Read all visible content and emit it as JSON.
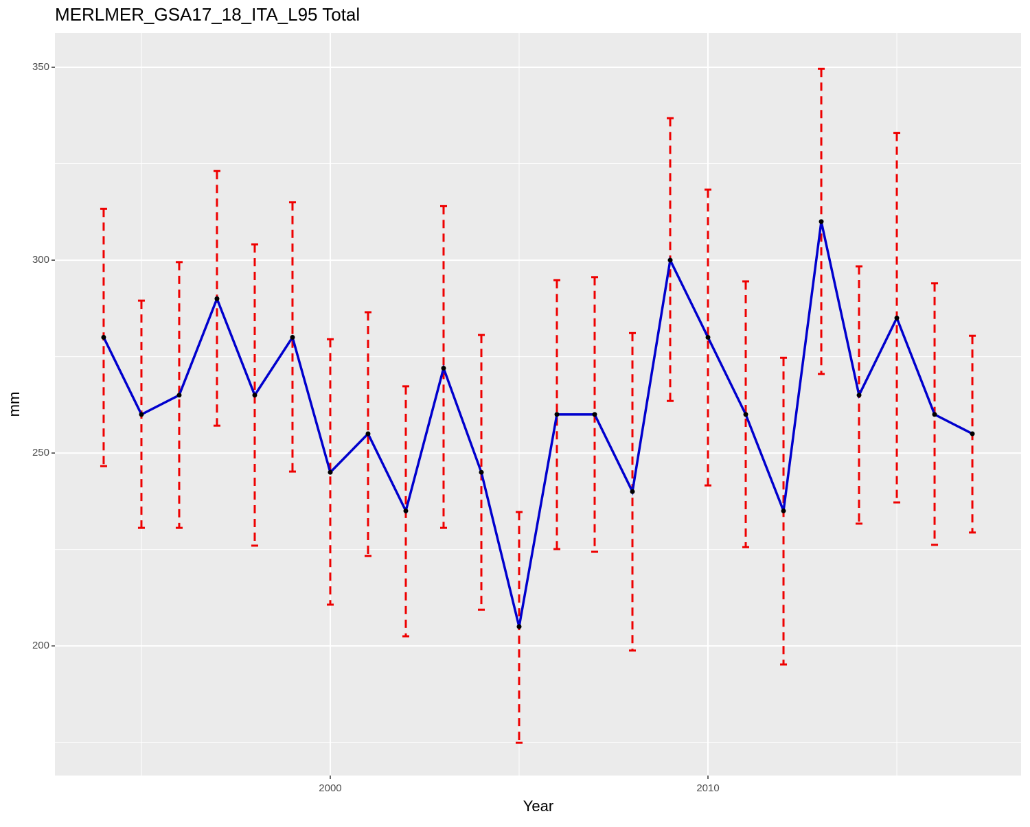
{
  "chart_data": {
    "type": "line",
    "title": "MERLMER_GSA17_18_ITA_L95 Total",
    "x_label": "Year",
    "y_label": "mm",
    "x": [
      1994,
      1995,
      1996,
      1997,
      1998,
      1999,
      2000,
      2001,
      2002,
      2003,
      2004,
      2005,
      2006,
      2007,
      2008,
      2009,
      2010,
      2011,
      2012,
      2013,
      2014,
      2015,
      2016,
      2017
    ],
    "series": [
      {
        "color": "#0000cd",
        "values": [
          280,
          260,
          265,
          290,
          265,
          280,
          245,
          255,
          235,
          272,
          245,
          205,
          260,
          260,
          240,
          300,
          280,
          260,
          235,
          310,
          265,
          285,
          260,
          255
        ],
        "lower": [
          246.6,
          230.6,
          230.6,
          257.1,
          226,
          245.2,
          210.7,
          223.3,
          202.5,
          230.6,
          209.4,
          174.9,
          225.1,
          224.4,
          198.8,
          263.5,
          241.6,
          225.6,
          195.2,
          270.5,
          231.7,
          237.2,
          226.2,
          229.4
        ],
        "upper": [
          313.3,
          289.5,
          299.5,
          323.1,
          304.1,
          315,
          279.5,
          286.5,
          267.3,
          314,
          280.6,
          234.7,
          294.8,
          295.6,
          281.1,
          336.8,
          318.3,
          294.5,
          274.7,
          349.6,
          298.4,
          333,
          294,
          280.4
        ]
      }
    ],
    "error_color": "#ee0000",
    "point_color": "#000000",
    "xlim": [
      1992.71,
      2018.29
    ],
    "xticks": [
      2000,
      2010
    ],
    "x_minor_ticks": [
      1995,
      2005,
      2015
    ],
    "ylim": [
      166.4,
      358.9
    ],
    "yticks": [
      200,
      250,
      300,
      350
    ],
    "y_minor_ticks": [
      175,
      225,
      275,
      325
    ],
    "grid": true
  }
}
